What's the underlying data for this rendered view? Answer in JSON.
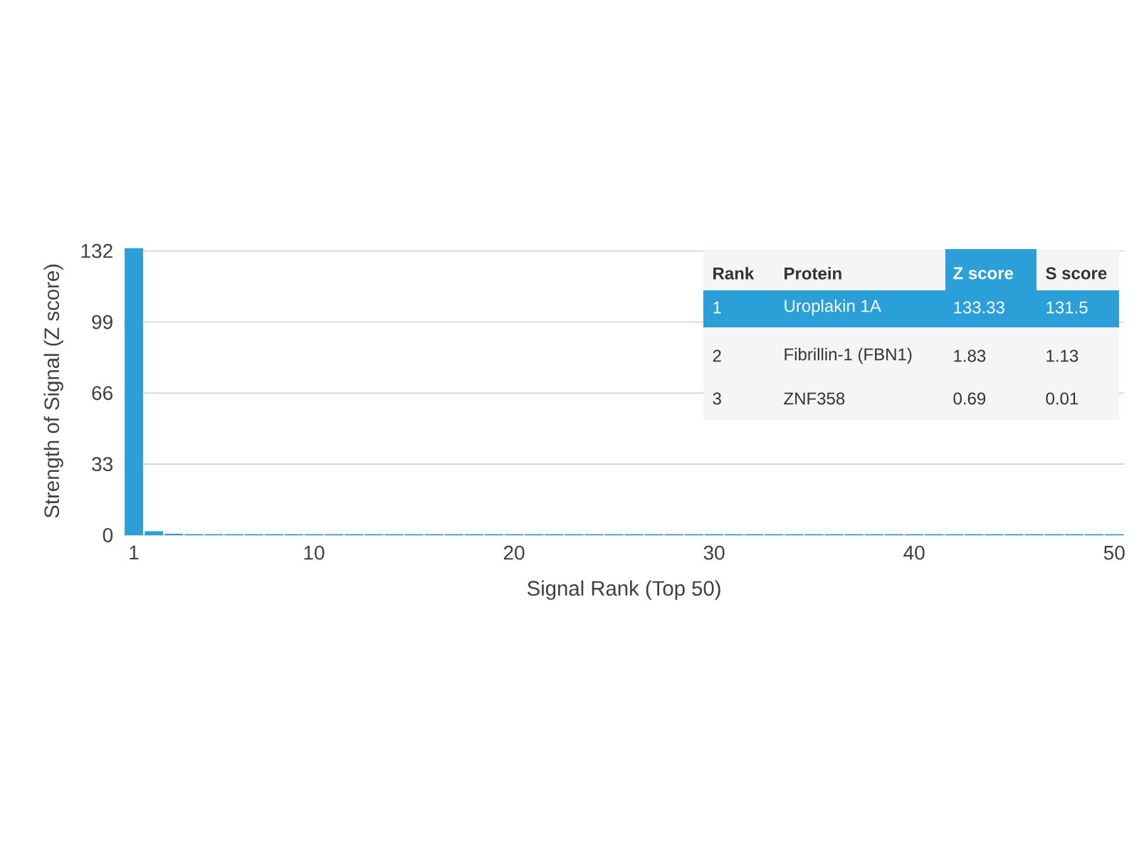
{
  "chart_data": {
    "type": "bar",
    "xlabel": "Signal Rank (Top 50)",
    "ylabel": "Strength of Signal (Z score)",
    "x": [
      1,
      2,
      3,
      4,
      5,
      6,
      7,
      8,
      9,
      10,
      11,
      12,
      13,
      14,
      15,
      16,
      17,
      18,
      19,
      20,
      21,
      22,
      23,
      24,
      25,
      26,
      27,
      28,
      29,
      30,
      31,
      32,
      33,
      34,
      35,
      36,
      37,
      38,
      39,
      40,
      41,
      42,
      43,
      44,
      45,
      46,
      47,
      48,
      49,
      50
    ],
    "values": [
      133.33,
      1.83,
      0.69,
      0.5,
      0.5,
      0.5,
      0.5,
      0.5,
      0.5,
      0.5,
      0.5,
      0.5,
      0.5,
      0.5,
      0.5,
      0.5,
      0.5,
      0.5,
      0.5,
      0.5,
      0.5,
      0.5,
      0.5,
      0.5,
      0.5,
      0.5,
      0.5,
      0.5,
      0.5,
      0.5,
      0.5,
      0.5,
      0.5,
      0.5,
      0.5,
      0.5,
      0.5,
      0.5,
      0.5,
      0.5,
      0.5,
      0.5,
      0.5,
      0.5,
      0.5,
      0.5,
      0.5,
      0.5,
      0.5,
      0.5
    ],
    "color": "#2a9fd8",
    "xlim": [
      0.5,
      50.5
    ],
    "xticks": [
      1,
      10,
      20,
      30,
      40,
      50
    ],
    "ylim": [
      0,
      134
    ],
    "yticks": [
      0,
      33,
      66,
      99,
      132
    ],
    "grid": "y",
    "annotations": [
      "Rank",
      "Protein",
      "Z score",
      "S score",
      "1",
      "Uroplakin 1A",
      "133.33",
      "131.5",
      "2",
      "Fibrillin-1 (FBN1)",
      "1.83",
      "1.13",
      "3",
      "ZNF358",
      "0.69",
      "0.01"
    ]
  }
}
